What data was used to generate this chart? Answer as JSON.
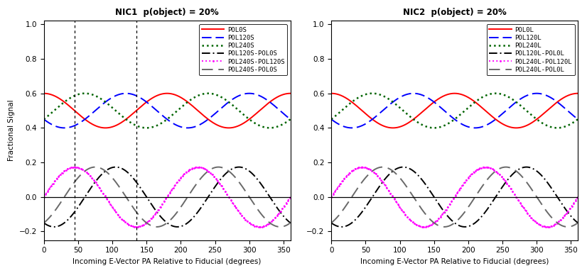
{
  "title1": "NIC1  p(object) = 20%",
  "title2": "NIC2  p(object) = 20%",
  "xlabel": "Incoming E-Vector PA Relative to Fiducial (degrees)",
  "ylabel": "Fractional Signal",
  "xlim": [
    0,
    360
  ],
  "ylim": [
    -0.25,
    1.02
  ],
  "yticks": [
    -0.2,
    0.0,
    0.2,
    0.4,
    0.6,
    0.8,
    1.0
  ],
  "xticks": [
    0,
    50,
    100,
    150,
    200,
    250,
    300,
    350
  ],
  "p": 0.2,
  "vlines1": [
    45,
    135
  ],
  "legend1": [
    "POL0S",
    "POL120S",
    "POL240S",
    "POL120S-POL0S",
    "POL240S-POL120S",
    "POL240S-POL0S"
  ],
  "legend2": [
    "POL0L",
    "POL120L",
    "POL240L",
    "POL120L-POL0L",
    "POL240L-POL120L",
    "POL240L-POL0L"
  ]
}
